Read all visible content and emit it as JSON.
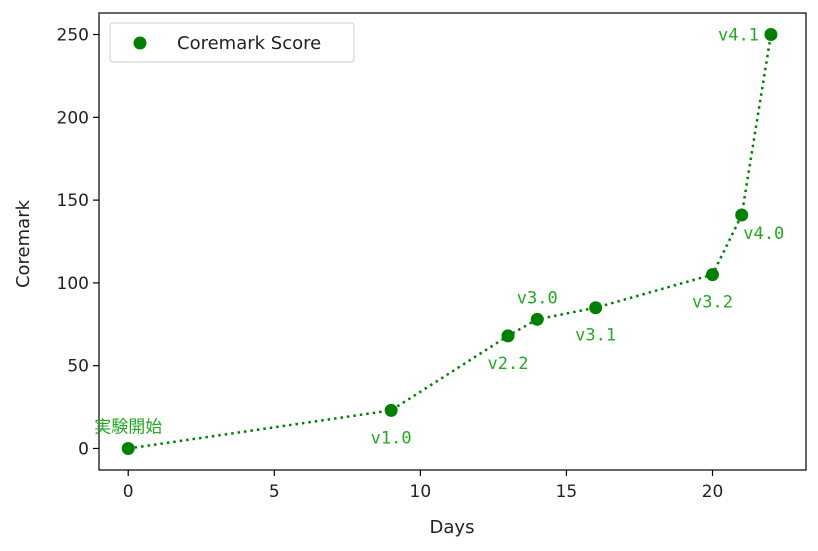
{
  "chart_data": {
    "type": "scatter",
    "xlabel": "Days",
    "ylabel": "Coremark",
    "xlim": [
      -1,
      23.2
    ],
    "ylim": [
      -13,
      263
    ],
    "xticks": [
      0,
      5,
      10,
      15,
      20
    ],
    "yticks": [
      0,
      50,
      100,
      150,
      200,
      250
    ],
    "grid": false,
    "legend_position": "top-left",
    "color": "#008000",
    "label_color": "#22aa22",
    "connector": "dotted-line",
    "series": [
      {
        "name": "Coremark Score",
        "points": [
          {
            "x": 0,
            "y": 0,
            "label": "実験開始",
            "label_pos": "above"
          },
          {
            "x": 9,
            "y": 23,
            "label": "v1.0",
            "label_pos": "below"
          },
          {
            "x": 13,
            "y": 68,
            "label": "v2.2",
            "label_pos": "below"
          },
          {
            "x": 14,
            "y": 78,
            "label": "v3.0",
            "label_pos": "above"
          },
          {
            "x": 16,
            "y": 85,
            "label": "v3.1",
            "label_pos": "below"
          },
          {
            "x": 20,
            "y": 105,
            "label": "v3.2",
            "label_pos": "below"
          },
          {
            "x": 21,
            "y": 141,
            "label": "v4.0",
            "label_pos": "below-right"
          },
          {
            "x": 22,
            "y": 250,
            "label": "v4.1",
            "label_pos": "left"
          }
        ]
      }
    ]
  }
}
